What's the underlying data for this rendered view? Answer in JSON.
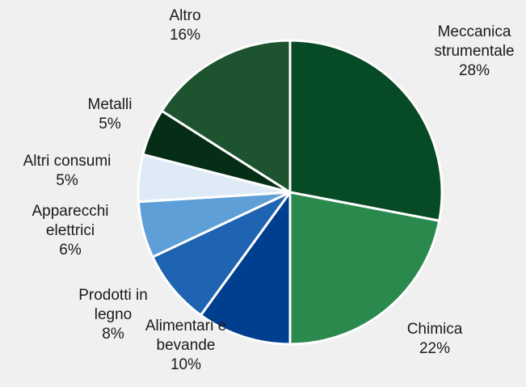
{
  "chart_data": {
    "type": "pie",
    "title": "",
    "slices": [
      {
        "name_lines": [
          "Meccanica",
          "strumentale"
        ],
        "pct_label": "28%",
        "value": 28,
        "color": "#074a26"
      },
      {
        "name_lines": [
          "Chimica"
        ],
        "pct_label": "22%",
        "value": 22,
        "color": "#2a8a4e"
      },
      {
        "name_lines": [
          "Alimentari e",
          "bevande"
        ],
        "pct_label": "10%",
        "value": 10,
        "color": "#003f8f"
      },
      {
        "name_lines": [
          "Prodotti in",
          "legno"
        ],
        "pct_label": "8%",
        "value": 8,
        "color": "#1f63b3"
      },
      {
        "name_lines": [
          "Apparecchi",
          "elettrici"
        ],
        "pct_label": "6%",
        "value": 6,
        "color": "#5e9fd7"
      },
      {
        "name_lines": [
          "Altri consumi"
        ],
        "pct_label": "5%",
        "value": 5,
        "color": "#deebf7"
      },
      {
        "name_lines": [
          "Metalli"
        ],
        "pct_label": "5%",
        "value": 5,
        "color": "#062e16"
      },
      {
        "name_lines": [
          "Altro"
        ],
        "pct_label": "16%",
        "value": 16,
        "color": "#1d542f"
      }
    ],
    "start": "12 o'clock",
    "direction": "clockwise",
    "legend": "none",
    "slice_border_color": "#ffffff"
  }
}
